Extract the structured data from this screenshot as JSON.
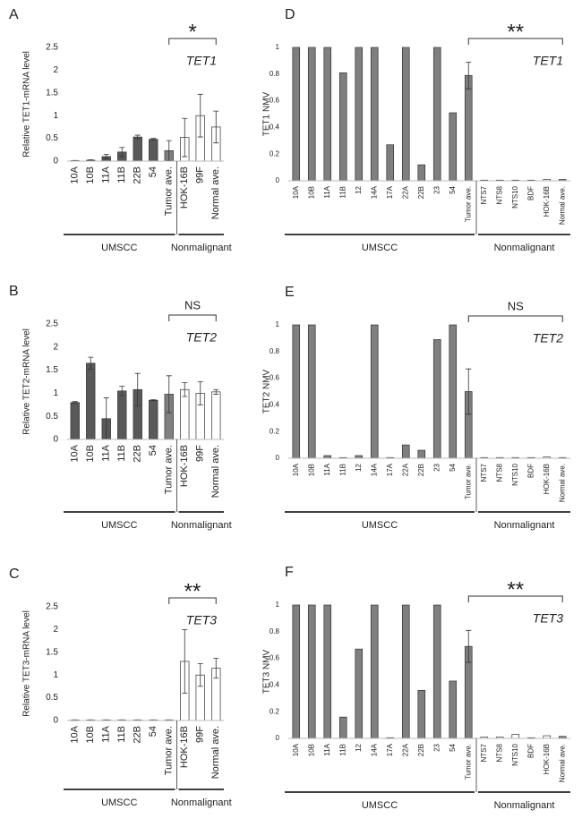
{
  "chart_data": [
    {
      "type": "bar",
      "panel": "A",
      "gene": "TET1",
      "y_label": "Relative TET1-mRNA level",
      "categories": [
        "10A",
        "10B",
        "11A",
        "11B",
        "22B",
        "54",
        "Tumor ave.",
        "HOK-16B",
        "99F",
        "Normal ave."
      ],
      "values": [
        0.01,
        0.02,
        0.1,
        0.2,
        0.53,
        0.48,
        0.23,
        0.52,
        1.0,
        0.75
      ],
      "errors": [
        0.005,
        0.01,
        0.05,
        0.1,
        0.04,
        0.02,
        0.22,
        0.42,
        0.47,
        0.35
      ],
      "colors": [
        "#595959",
        "#595959",
        "#595959",
        "#595959",
        "#595959",
        "#595959",
        "#808080",
        "#ffffff",
        "#ffffff",
        "#ffffff"
      ],
      "ylim": [
        0,
        2.5
      ],
      "yticks": [
        0,
        0.5,
        1,
        1.5,
        2,
        2.5
      ],
      "significance": {
        "label": "*",
        "span": [
          6,
          9
        ]
      },
      "groups": [
        {
          "name": "UMSCC",
          "span": [
            0,
            6
          ]
        },
        {
          "name": "Nonmalignant",
          "span": [
            7,
            9
          ]
        }
      ]
    },
    {
      "type": "bar",
      "panel": "B",
      "gene": "TET2",
      "y_label": "Relative TET2-mRNA level",
      "categories": [
        "10A",
        "10B",
        "11A",
        "11B",
        "22B",
        "54",
        "Tumor ave.",
        "HOK-16B",
        "99F",
        "Normal ave."
      ],
      "values": [
        0.8,
        1.65,
        0.45,
        1.05,
        1.08,
        0.85,
        0.98,
        1.08,
        1.0,
        1.03
      ],
      "errors": [
        0.02,
        0.13,
        0.45,
        0.1,
        0.35,
        0.01,
        0.4,
        0.15,
        0.25,
        0.05
      ],
      "colors": [
        "#595959",
        "#595959",
        "#595959",
        "#595959",
        "#595959",
        "#595959",
        "#808080",
        "#ffffff",
        "#ffffff",
        "#ffffff"
      ],
      "ylim": [
        0,
        2.5
      ],
      "yticks": [
        0,
        0.5,
        1,
        1.5,
        2,
        2.5
      ],
      "significance": {
        "label": "NS",
        "span": [
          6,
          9
        ]
      },
      "groups": [
        {
          "name": "UMSCC",
          "span": [
            0,
            6
          ]
        },
        {
          "name": "Nonmalignant",
          "span": [
            7,
            9
          ]
        }
      ]
    },
    {
      "type": "bar",
      "panel": "C",
      "gene": "TET3",
      "y_label": "Relative TET3-mRNA level",
      "categories": [
        "10A",
        "10B",
        "11A",
        "11B",
        "22B",
        "54",
        "Tumor ave.",
        "HOK-16B",
        "99F",
        "Normal ave."
      ],
      "values": [
        0.01,
        0.01,
        0.01,
        0.01,
        0.01,
        0.01,
        0.01,
        1.3,
        1.0,
        1.15
      ],
      "errors": [
        0.005,
        0.005,
        0.005,
        0.005,
        0.005,
        0.005,
        0.005,
        0.7,
        0.25,
        0.22
      ],
      "colors": [
        "#595959",
        "#595959",
        "#595959",
        "#595959",
        "#595959",
        "#595959",
        "#808080",
        "#ffffff",
        "#ffffff",
        "#ffffff"
      ],
      "ylim": [
        0,
        2.5
      ],
      "yticks": [
        0,
        0.5,
        1,
        1.5,
        2,
        2.5
      ],
      "significance": {
        "label": "**",
        "span": [
          6,
          9
        ]
      },
      "groups": [
        {
          "name": "UMSCC",
          "span": [
            0,
            6
          ]
        },
        {
          "name": "Nonmalignant",
          "span": [
            7,
            9
          ]
        }
      ]
    },
    {
      "type": "bar",
      "panel": "D",
      "gene": "TET1",
      "y_label": "TET1 NMV",
      "categories": [
        "10A",
        "10B",
        "11A",
        "11B",
        "12",
        "14A",
        "17A",
        "22A",
        "22B",
        "23",
        "54",
        "Tumor ave.",
        "NTS7",
        "NTS8",
        "NTS10",
        "BDF",
        "HOK-16B",
        "Normal ave."
      ],
      "values": [
        1,
        1,
        1,
        0.81,
        1,
        1,
        0.27,
        1,
        0.12,
        1,
        0.51,
        0.79,
        0.005,
        0.005,
        0.005,
        0.005,
        0.01,
        0.01
      ],
      "errors": [
        null,
        null,
        null,
        null,
        null,
        null,
        null,
        null,
        null,
        null,
        null,
        0.1,
        null,
        null,
        null,
        null,
        null,
        null
      ],
      "colors": [
        "#7f7f7f",
        "#7f7f7f",
        "#7f7f7f",
        "#7f7f7f",
        "#7f7f7f",
        "#7f7f7f",
        "#7f7f7f",
        "#7f7f7f",
        "#7f7f7f",
        "#7f7f7f",
        "#7f7f7f",
        "#7f7f7f",
        "#ffffff",
        "#ffffff",
        "#ffffff",
        "#ffffff",
        "#ffffff",
        "#7f7f7f"
      ],
      "ylim": [
        0,
        1
      ],
      "yticks": [
        0,
        0.2,
        0.4,
        0.6,
        0.8,
        1
      ],
      "significance": {
        "label": "**",
        "span": [
          11,
          17
        ]
      },
      "groups": [
        {
          "name": "UMSCC",
          "span": [
            0,
            11
          ]
        },
        {
          "name": "Nonmalignant",
          "span": [
            12,
            17
          ]
        }
      ]
    },
    {
      "type": "bar",
      "panel": "E",
      "gene": "TET2",
      "y_label": "TET2 NMV",
      "categories": [
        "10A",
        "10B",
        "11A",
        "11B",
        "12",
        "14A",
        "17A",
        "22A",
        "22B",
        "23",
        "54",
        "Tumor ave.",
        "NTS7",
        "NTS8",
        "NTS10",
        "BDF",
        "HOK-16B",
        "Normal ave."
      ],
      "values": [
        1,
        1,
        0.02,
        0.005,
        0.02,
        1,
        0.005,
        0.1,
        0.06,
        0.89,
        1,
        0.5,
        0.005,
        0.005,
        0.005,
        0.005,
        0.01,
        0.005
      ],
      "errors": [
        null,
        null,
        null,
        null,
        null,
        null,
        null,
        null,
        null,
        null,
        null,
        0.17,
        null,
        null,
        null,
        null,
        null,
        null
      ],
      "colors": [
        "#7f7f7f",
        "#7f7f7f",
        "#7f7f7f",
        "#7f7f7f",
        "#7f7f7f",
        "#7f7f7f",
        "#7f7f7f",
        "#7f7f7f",
        "#7f7f7f",
        "#7f7f7f",
        "#7f7f7f",
        "#7f7f7f",
        "#ffffff",
        "#ffffff",
        "#ffffff",
        "#ffffff",
        "#ffffff",
        "#ffffff"
      ],
      "ylim": [
        0,
        1
      ],
      "yticks": [
        0,
        0.2,
        0.4,
        0.6,
        0.8,
        1
      ],
      "significance": {
        "label": "NS",
        "span": [
          11,
          17
        ]
      },
      "groups": [
        {
          "name": "UMSCC",
          "span": [
            0,
            11
          ]
        },
        {
          "name": "Nonmalignant",
          "span": [
            12,
            17
          ]
        }
      ]
    },
    {
      "type": "bar",
      "panel": "F",
      "gene": "TET3",
      "y_label": "TET3 NMV",
      "categories": [
        "10A",
        "10B",
        "11A",
        "11B",
        "12",
        "14A",
        "17A",
        "22A",
        "22B",
        "23",
        "54",
        "Tumor ave.",
        "NTS7",
        "NTS8",
        "NTS10",
        "BDF",
        "HOK-16B",
        "Normal ave."
      ],
      "values": [
        1,
        1,
        1,
        0.16,
        0.67,
        1,
        0.005,
        1,
        0.36,
        1,
        0.43,
        0.69,
        0.01,
        0.01,
        0.03,
        0.005,
        0.02,
        0.015
      ],
      "errors": [
        null,
        null,
        null,
        null,
        null,
        null,
        null,
        null,
        null,
        null,
        null,
        0.12,
        null,
        null,
        null,
        null,
        null,
        null
      ],
      "colors": [
        "#7f7f7f",
        "#7f7f7f",
        "#7f7f7f",
        "#7f7f7f",
        "#7f7f7f",
        "#7f7f7f",
        "#7f7f7f",
        "#7f7f7f",
        "#7f7f7f",
        "#7f7f7f",
        "#7f7f7f",
        "#7f7f7f",
        "#ffffff",
        "#ffffff",
        "#ffffff",
        "#ffffff",
        "#ffffff",
        "#7f7f7f"
      ],
      "ylim": [
        0,
        1
      ],
      "yticks": [
        0,
        0.2,
        0.4,
        0.6,
        0.8,
        1
      ],
      "significance": {
        "label": "**",
        "span": [
          11,
          17
        ]
      },
      "groups": [
        {
          "name": "UMSCC",
          "span": [
            0,
            11
          ]
        },
        {
          "name": "Nonmalignant",
          "span": [
            12,
            17
          ]
        }
      ]
    }
  ]
}
